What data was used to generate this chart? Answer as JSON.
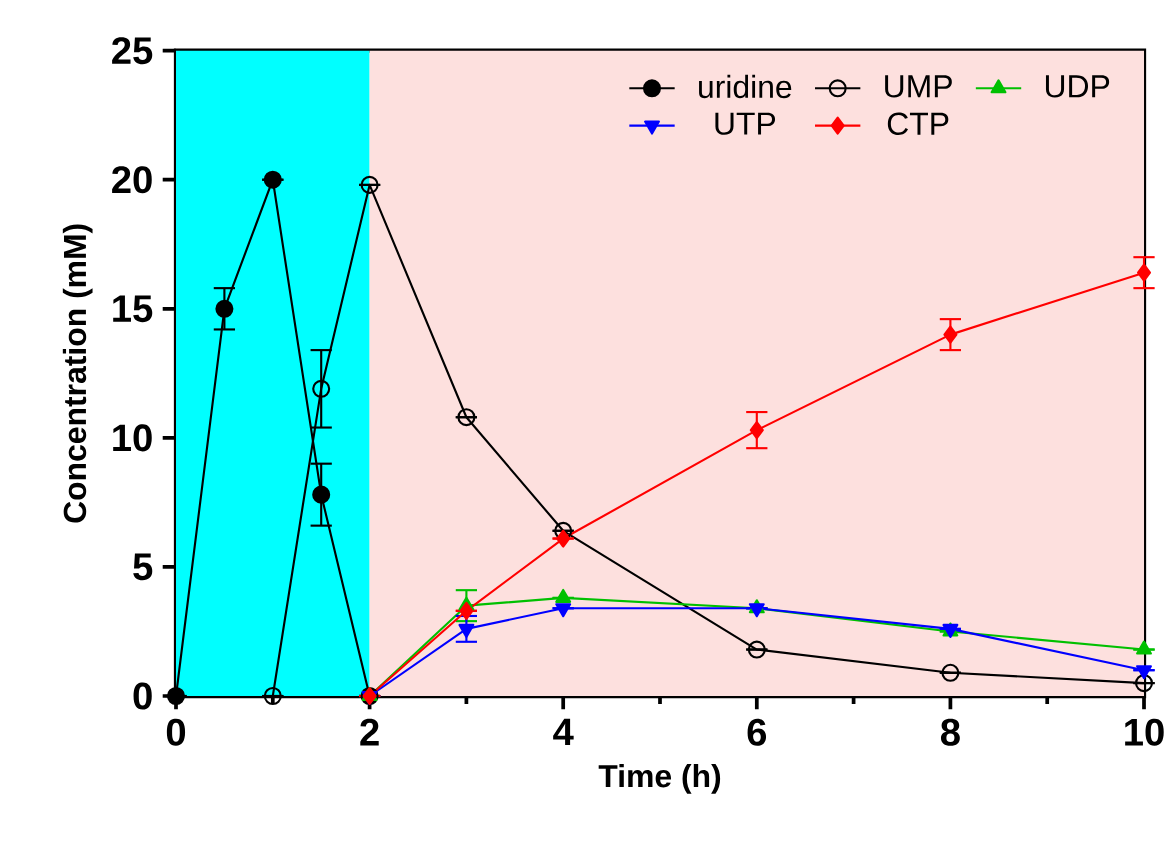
{
  "chart_data": {
    "type": "line",
    "xlabel": "Time (h)",
    "ylabel": "Concentration (mM)",
    "xlim": [
      0,
      10
    ],
    "ylim": [
      0,
      25
    ],
    "xticks": [
      0,
      {
        "value": 1,
        "label": null
      },
      2,
      {
        "value": 3,
        "label": null
      },
      4,
      {
        "value": 5,
        "label": null
      },
      6,
      {
        "value": 7,
        "label": null
      },
      8,
      {
        "value": 9,
        "label": null
      },
      10
    ],
    "yticks": [
      0,
      5,
      10,
      15,
      20,
      25
    ],
    "legend": "top right",
    "grid": false,
    "line_style": "solid",
    "bands": [
      {
        "axis": "x",
        "from": 0,
        "to": 2,
        "color": "#00ffff"
      },
      {
        "axis": "x",
        "from": 2,
        "to": 10,
        "color": "#fde0de"
      }
    ],
    "series": [
      {
        "name": "uridine",
        "color": "#000000",
        "marker": "circle",
        "x": [
          0,
          0.5,
          1,
          1.5,
          2
        ],
        "values": [
          0,
          15,
          20,
          7.8,
          0
        ],
        "errors": [
          null,
          0.8,
          null,
          1.2,
          null
        ]
      },
      {
        "name": "UMP",
        "color": "#000000",
        "marker": "circle",
        "x": [
          1,
          1.5,
          2,
          3,
          4,
          6,
          8,
          10
        ],
        "values": [
          0,
          11.9,
          19.8,
          10.8,
          6.4,
          1.8,
          0.9,
          0.5
        ],
        "errors": [
          null,
          1.5,
          null,
          null,
          null,
          null,
          null,
          null
        ]
      },
      {
        "name": "UDP",
        "color": "#00c000",
        "marker": "triangle",
        "x": [
          2,
          3,
          4,
          6,
          8,
          10
        ],
        "values": [
          0,
          3.5,
          3.8,
          3.4,
          2.5,
          1.8
        ],
        "errors": [
          null,
          0.6,
          null,
          null,
          null,
          null
        ]
      },
      {
        "name": "UTP",
        "color": "#0000ff",
        "marker": "triangle_down",
        "x": [
          2,
          3,
          4,
          6,
          8,
          10
        ],
        "values": [
          0,
          2.6,
          3.4,
          3.4,
          2.6,
          1.0
        ],
        "errors": [
          null,
          0.5,
          null,
          null,
          null,
          null
        ]
      },
      {
        "name": "CTP",
        "color": "#ff0000",
        "marker": "diamond",
        "x": [
          2,
          3,
          4,
          6,
          8,
          10
        ],
        "values": [
          0,
          3.3,
          6.1,
          10.3,
          14.0,
          16.4
        ],
        "errors": [
          null,
          null,
          null,
          0.7,
          0.6,
          0.6
        ]
      }
    ]
  }
}
